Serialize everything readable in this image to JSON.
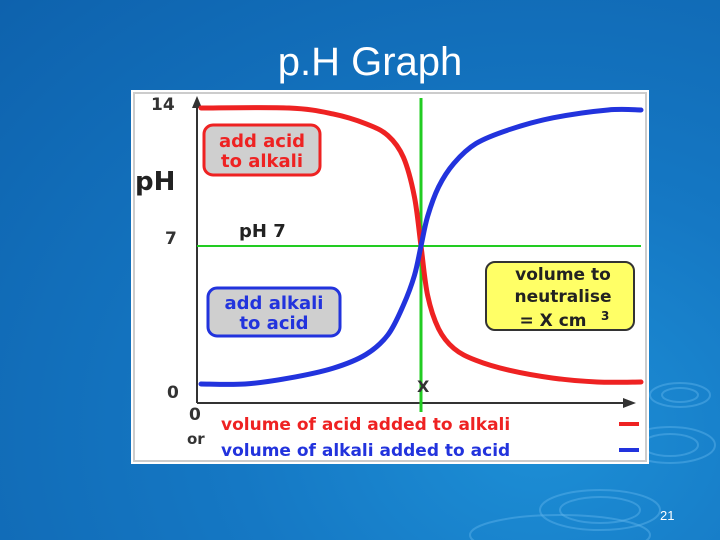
{
  "slide": {
    "title": "p.H Graph",
    "number": "21"
  },
  "chart_data": {
    "type": "line",
    "title": "",
    "xlabel": "",
    "ylabel": "pH",
    "ylim": [
      0,
      14
    ],
    "xlim": [
      0,
      2
    ],
    "y_ticks": [
      "14",
      "7",
      "0"
    ],
    "x_ticks": [
      "0"
    ],
    "x_origin_note": "or",
    "equivalence_label": "X",
    "neutral_line": {
      "y": 7,
      "label": "pH 7",
      "color": "#22cc22"
    },
    "equivalence_line": {
      "x": 1,
      "color": "#22cc22"
    },
    "series": [
      {
        "name": "volume of acid added to alkali",
        "color": "#ee2222",
        "x": [
          0,
          0.4,
          0.6,
          0.75,
          0.85,
          0.92,
          0.97,
          1.0,
          1.03,
          1.08,
          1.15,
          1.25,
          1.4,
          1.6,
          1.8,
          2.0
        ],
        "y": [
          14,
          14,
          13.7,
          13.2,
          12.6,
          11.5,
          9.5,
          7,
          4.5,
          2.8,
          1.8,
          1.2,
          0.7,
          0.3,
          0.1,
          0.1
        ]
      },
      {
        "name": "volume of alkali added to acid",
        "color": "#2233dd",
        "x": [
          0,
          0.2,
          0.4,
          0.6,
          0.75,
          0.85,
          0.92,
          0.97,
          1.0,
          1.03,
          1.08,
          1.15,
          1.25,
          1.4,
          1.6,
          1.85,
          2.0
        ],
        "y": [
          0,
          0,
          0.3,
          0.8,
          1.5,
          2.5,
          4.0,
          5.5,
          7,
          8.5,
          10,
          11.2,
          12.2,
          12.9,
          13.5,
          13.9,
          13.9
        ]
      }
    ],
    "annotations": {
      "acid_box": [
        "add acid",
        "to alkali"
      ],
      "alkali_box": [
        "add alkali",
        "to acid"
      ],
      "neutral_box": [
        "volume to",
        "neutralise",
        "= X cm",
        "3"
      ]
    }
  }
}
